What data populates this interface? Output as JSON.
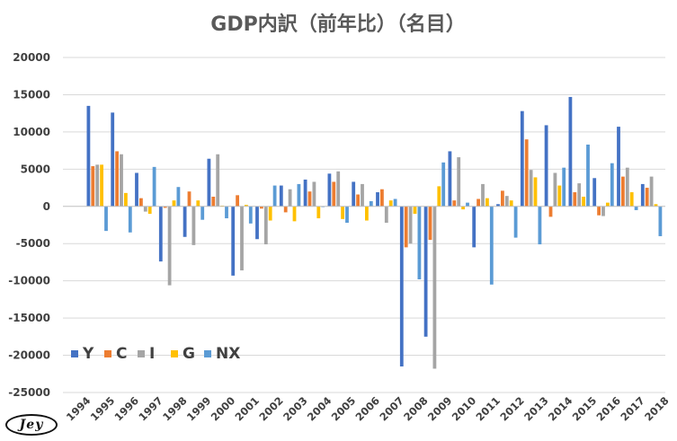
{
  "chart_data": {
    "type": "bar",
    "title": "GDP内訳（前年比）（名目）",
    "xlabel": "",
    "ylabel": "",
    "ylim": [
      -25000,
      20000
    ],
    "yticks": [
      20000,
      15000,
      10000,
      5000,
      0,
      -5000,
      -10000,
      -15000,
      -20000,
      -25000
    ],
    "ytick_labels": [
      "20000",
      "15000",
      "10000",
      "5000",
      "0",
      "-5000",
      "-10000",
      "-15000",
      "-20000",
      "-25000"
    ],
    "grid": true,
    "legend_position": "bottom-left",
    "categories": [
      "1994",
      "1995",
      "1996",
      "1997",
      "1998",
      "1999",
      "2000",
      "2001",
      "2002",
      "2003",
      "2004",
      "2005",
      "2006",
      "2007",
      "2008",
      "2009",
      "2010",
      "2011",
      "2012",
      "2013",
      "2014",
      "2015",
      "2016",
      "2017",
      "2018"
    ],
    "series": [
      {
        "name": "Y",
        "color": "#4472c4",
        "values": [
          13500,
          12600,
          4500,
          -7400,
          -4100,
          6400,
          -9300,
          -4400,
          2800,
          3600,
          4400,
          3300,
          1900,
          -21500,
          -17500,
          7400,
          -5500,
          300,
          12800,
          10900,
          14700,
          3800,
          10700,
          3000,
          null
        ]
      },
      {
        "name": "C",
        "color": "#ed7d31",
        "values": [
          5400,
          7400,
          1100,
          -200,
          2000,
          1300,
          1500,
          -300,
          -800,
          2000,
          3300,
          1600,
          2300,
          -5500,
          -4500,
          800,
          1000,
          2100,
          9000,
          -1400,
          1900,
          -1200,
          4000,
          2500,
          null
        ]
      },
      {
        "name": "I",
        "color": "#a5a5a5",
        "values": [
          5600,
          7000,
          -700,
          -10600,
          -5200,
          7000,
          -8600,
          -5100,
          2300,
          3300,
          4700,
          3000,
          -2200,
          -5000,
          -21800,
          6600,
          3000,
          1400,
          4900,
          4500,
          3100,
          -1300,
          5200,
          4000,
          null
        ]
      },
      {
        "name": "G",
        "color": "#ffc000",
        "values": [
          5600,
          1800,
          -1000,
          800,
          800,
          100,
          200,
          -1900,
          -2000,
          -1600,
          -1700,
          -1900,
          800,
          -1000,
          2700,
          -400,
          1100,
          800,
          3900,
          2800,
          1300,
          500,
          1900,
          300,
          null
        ]
      },
      {
        "name": "NX",
        "color": "#5b9bd5",
        "values": [
          -3300,
          -3500,
          5300,
          2600,
          -1800,
          -1600,
          -2300,
          2800,
          3000,
          -100,
          -2200,
          700,
          1000,
          -9800,
          5900,
          500,
          -10500,
          -4200,
          -5100,
          5200,
          8300,
          5800,
          -500,
          -4000,
          null
        ]
      }
    ]
  },
  "logo": {
    "text": "Jey"
  }
}
